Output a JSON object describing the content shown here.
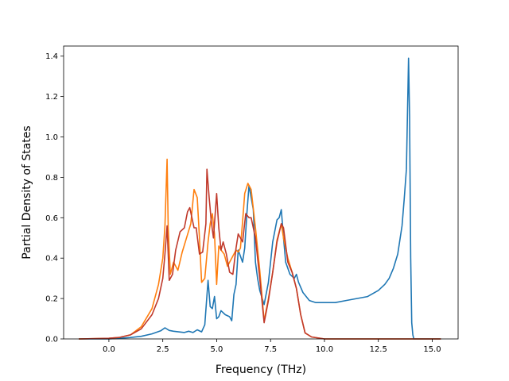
{
  "chart_data": {
    "type": "line",
    "title": "",
    "xlabel": "Frequency (THz)",
    "ylabel": "Partial Density of States",
    "xlim": [
      -2.1,
      16.2
    ],
    "ylim": [
      0.0,
      1.45
    ],
    "xticks": [
      0.0,
      2.5,
      5.0,
      7.5,
      10.0,
      12.5,
      15.0
    ],
    "xtick_labels": [
      "0.0",
      "2.5",
      "5.0",
      "7.5",
      "10.0",
      "12.5",
      "15.0"
    ],
    "yticks": [
      0.0,
      0.2,
      0.4,
      0.6,
      0.8,
      1.0,
      1.2,
      1.4
    ],
    "ytick_labels": [
      "0.0",
      "0.2",
      "0.4",
      "0.6",
      "0.8",
      "1.0",
      "1.2",
      "1.4"
    ],
    "grid": false,
    "legend": "none",
    "series": [
      {
        "color": "#1f77b4",
        "x": [
          -1.4,
          0.0,
          0.5,
          1.0,
          1.5,
          2.0,
          2.4,
          2.6,
          2.8,
          3.0,
          3.5,
          3.7,
          3.9,
          4.1,
          4.3,
          4.45,
          4.6,
          4.7,
          4.8,
          4.9,
          5.0,
          5.1,
          5.2,
          5.4,
          5.6,
          5.7,
          5.8,
          5.9,
          6.0,
          6.1,
          6.2,
          6.3,
          6.4,
          6.5,
          6.6,
          6.7,
          6.8,
          6.9,
          7.0,
          7.2,
          7.4,
          7.6,
          7.8,
          7.9,
          8.0,
          8.1,
          8.2,
          8.4,
          8.6,
          8.7,
          8.8,
          9.0,
          9.3,
          9.6,
          10.0,
          10.5,
          11.0,
          11.5,
          12.0,
          12.5,
          12.8,
          13.0,
          13.2,
          13.4,
          13.6,
          13.7,
          13.8,
          13.9,
          13.95,
          14.0,
          14.05,
          14.1,
          14.15,
          14.3,
          15.4
        ],
        "y": [
          0.0,
          0.0,
          0.003,
          0.007,
          0.013,
          0.025,
          0.04,
          0.055,
          0.042,
          0.038,
          0.032,
          0.038,
          0.032,
          0.045,
          0.035,
          0.07,
          0.29,
          0.16,
          0.15,
          0.21,
          0.1,
          0.11,
          0.14,
          0.12,
          0.11,
          0.09,
          0.22,
          0.27,
          0.44,
          0.41,
          0.38,
          0.45,
          0.62,
          0.76,
          0.7,
          0.64,
          0.38,
          0.3,
          0.24,
          0.17,
          0.28,
          0.48,
          0.59,
          0.6,
          0.64,
          0.5,
          0.38,
          0.32,
          0.3,
          0.32,
          0.28,
          0.23,
          0.19,
          0.18,
          0.18,
          0.18,
          0.19,
          0.2,
          0.21,
          0.24,
          0.27,
          0.3,
          0.35,
          0.42,
          0.56,
          0.69,
          0.84,
          1.39,
          1.1,
          0.4,
          0.08,
          0.02,
          0.0,
          0.0,
          0.0
        ]
      },
      {
        "color": "#ff7f0e",
        "x": [
          -1.4,
          0.0,
          0.5,
          1.0,
          1.5,
          2.0,
          2.3,
          2.5,
          2.6,
          2.7,
          2.75,
          2.85,
          3.0,
          3.2,
          3.4,
          3.6,
          3.8,
          3.95,
          4.1,
          4.2,
          4.3,
          4.45,
          4.6,
          4.7,
          4.8,
          4.9,
          5.0,
          5.1,
          5.2,
          5.35,
          5.5,
          5.7,
          5.9,
          6.0,
          6.1,
          6.2,
          6.3,
          6.45,
          6.6,
          6.8,
          7.0,
          7.2,
          7.4,
          7.6,
          7.8,
          8.0,
          8.1,
          8.3,
          8.5,
          8.7,
          8.9,
          9.1,
          9.4,
          10.0,
          12.0,
          13.0,
          14.0,
          14.2,
          15.4
        ],
        "y": [
          0.0,
          0.003,
          0.008,
          0.02,
          0.06,
          0.15,
          0.27,
          0.4,
          0.56,
          0.89,
          0.55,
          0.32,
          0.38,
          0.34,
          0.43,
          0.5,
          0.57,
          0.74,
          0.7,
          0.5,
          0.28,
          0.3,
          0.48,
          0.57,
          0.62,
          0.52,
          0.27,
          0.46,
          0.44,
          0.42,
          0.36,
          0.4,
          0.44,
          0.43,
          0.45,
          0.58,
          0.72,
          0.77,
          0.74,
          0.55,
          0.34,
          0.09,
          0.2,
          0.33,
          0.49,
          0.57,
          0.5,
          0.4,
          0.33,
          0.25,
          0.12,
          0.03,
          0.01,
          0.0,
          0.0,
          0.0,
          0.0,
          0.0,
          0.0
        ]
      },
      {
        "color": "#c0392b",
        "x": [
          -1.4,
          0.0,
          0.5,
          1.0,
          1.5,
          2.0,
          2.3,
          2.5,
          2.6,
          2.7,
          2.8,
          2.95,
          3.1,
          3.3,
          3.5,
          3.65,
          3.75,
          3.85,
          3.95,
          4.05,
          4.2,
          4.35,
          4.5,
          4.55,
          4.65,
          4.75,
          4.85,
          5.0,
          5.1,
          5.2,
          5.3,
          5.45,
          5.6,
          5.75,
          5.9,
          6.0,
          6.1,
          6.2,
          6.35,
          6.5,
          6.6,
          6.8,
          7.0,
          7.2,
          7.4,
          7.6,
          7.8,
          8.0,
          8.1,
          8.3,
          8.5,
          8.7,
          8.9,
          9.1,
          9.4,
          10.0,
          12.0,
          13.0,
          14.0,
          15.4
        ],
        "y": [
          0.0,
          0.003,
          0.008,
          0.02,
          0.05,
          0.12,
          0.2,
          0.3,
          0.42,
          0.56,
          0.29,
          0.32,
          0.44,
          0.53,
          0.55,
          0.63,
          0.65,
          0.6,
          0.55,
          0.55,
          0.42,
          0.43,
          0.57,
          0.84,
          0.7,
          0.58,
          0.5,
          0.72,
          0.55,
          0.44,
          0.48,
          0.42,
          0.33,
          0.32,
          0.45,
          0.52,
          0.5,
          0.48,
          0.62,
          0.6,
          0.6,
          0.5,
          0.3,
          0.08,
          0.19,
          0.33,
          0.48,
          0.57,
          0.55,
          0.38,
          0.33,
          0.25,
          0.12,
          0.03,
          0.01,
          0.0,
          0.0,
          0.0,
          0.0,
          0.0
        ]
      }
    ]
  }
}
